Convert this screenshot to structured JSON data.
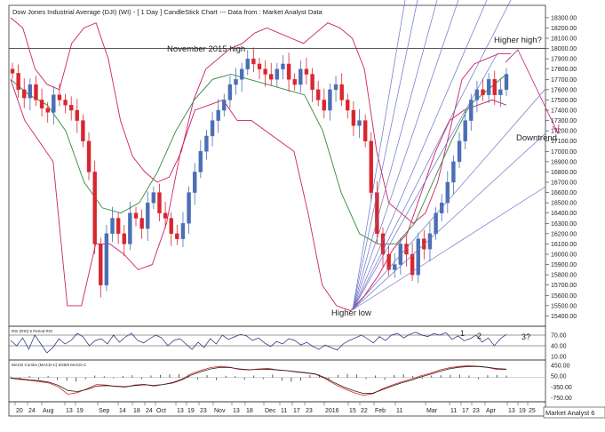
{
  "header": {
    "title": "Dow Jones Industrial Average (DJI) (WI) -  [ 1 Day ] CandleStick Chart --- Data from : Market Analyst Data"
  },
  "colors": {
    "candle_up": "#4a6fb5",
    "candle_down": "#d8262f",
    "bollinger": "#cc1f6a",
    "moving_average": "#2f8a3a",
    "fan_lines": "#6a72c8",
    "downtrend_arrow": "#c23a8a",
    "rsi_line": "#1b2a7a",
    "macd_line": "#d22",
    "signal_line": "#222",
    "text": "#222222"
  },
  "chart_data": [
    {
      "type": "candlestick",
      "title": "Dow Jones Industrial Average (DJI) (WI) -  [ 1 Day ] CandleStick Chart --- Data from : Market Analyst Data",
      "y_ticks": [
        15400,
        15500,
        15600,
        15700,
        15800,
        15900,
        16000,
        16100,
        16200,
        16300,
        16400,
        16500,
        16600,
        16700,
        16800,
        16900,
        17000,
        17100,
        17200,
        17300,
        17400,
        17500,
        17600,
        17700,
        17800,
        17900,
        18000,
        18100,
        18200,
        18300
      ],
      "y_tick_labels": [
        "15400.00",
        "15500.00",
        "15600.00",
        "15700.00",
        "15800.00",
        "15900.00",
        "16000.00",
        "16100.00",
        "16200.00",
        "16300.00",
        "16400.00",
        "16500.00",
        "16600.00",
        "16700.00",
        "16800.00",
        "16900.00",
        "17000.00",
        "17100.00",
        "17200.00",
        "17300.00",
        "17400.00",
        "17500.00",
        "17600.00",
        "17700.00",
        "17800.00",
        "17900.00",
        "18000.00",
        "18100.00",
        "18200.00",
        "18300.00"
      ],
      "ylim": [
        15300,
        18420
      ],
      "x_tick_labels": [
        "20",
        "24",
        "Aug",
        "13",
        "19",
        "Sep",
        "14",
        "18",
        "24",
        "Oct",
        "13",
        "19",
        "23",
        "Nov",
        "13",
        "18",
        "Dec",
        "11",
        "17",
        "23",
        "2016",
        "15",
        "22",
        "Feb",
        "11",
        "Mar",
        "11",
        "17",
        "23",
        "Apr",
        "13",
        "19",
        "25"
      ],
      "grid": false,
      "close_series": [
        17760,
        17600,
        17520,
        17650,
        17500,
        17420,
        17380,
        17550,
        17500,
        17450,
        17400,
        17300,
        17100,
        16800,
        16100,
        15700,
        16200,
        16350,
        16200,
        16100,
        16400,
        16350,
        16250,
        16500,
        16600,
        16400,
        16350,
        16200,
        16150,
        16300,
        16600,
        16800,
        17000,
        17150,
        17300,
        17400,
        17500,
        17650,
        17700,
        17800,
        17900,
        17850,
        17800,
        17750,
        17700,
        17800,
        17850,
        17700,
        17650,
        17800,
        17750,
        17600,
        17500,
        17400,
        17600,
        17650,
        17500,
        17400,
        17250,
        17300,
        17100,
        16600,
        16200,
        16000,
        15850,
        15900,
        16100,
        16000,
        15800,
        16150,
        16050,
        16200,
        16400,
        16500,
        16700,
        16900,
        17100,
        17300,
        17500,
        17600,
        17550,
        17700,
        17550,
        17600,
        17750
      ],
      "upper_band_levels": [
        18300,
        18200,
        17800,
        17650,
        17600,
        18050,
        18200,
        18250,
        17900,
        17300,
        16950,
        16800,
        16700,
        16750,
        17000,
        17500,
        17800,
        17900,
        18000,
        18050,
        18150,
        18200,
        18150,
        18100,
        18050,
        18150,
        18250,
        18200,
        18100,
        17800,
        17000,
        16500,
        16400,
        16300,
        16400,
        16700,
        17200,
        17700,
        17850,
        17900,
        17950,
        17950
      ],
      "lower_band_levels": [
        17700,
        17300,
        17100,
        16900,
        15500,
        15500,
        16100,
        16100,
        16000,
        15850,
        15900,
        16300,
        17000,
        17400,
        17450,
        17500,
        17300,
        17300,
        17200,
        17100,
        17000,
        16400,
        15700,
        15500,
        15450,
        15600,
        15800,
        16050,
        16200,
        16600,
        17000,
        17300,
        17400,
        17450,
        17500,
        17450
      ],
      "moving_average_levels": [
        17700,
        17550,
        17450,
        17200,
        16700,
        16450,
        16400,
        16500,
        16800,
        17200,
        17500,
        17700,
        17750,
        17700,
        17650,
        17600,
        17550,
        17200,
        16600,
        16200,
        16100,
        16100,
        16300,
        16700,
        17100,
        17450,
        17600,
        17750
      ]
    },
    {
      "type": "line",
      "title": "RSI (RSI) 5 Period RSI",
      "y_ticks": [
        10,
        40,
        70
      ],
      "y_tick_labels": [
        "10.00",
        "40.00",
        "70.00"
      ],
      "ylim": [
        0,
        95
      ],
      "reference_lines": [
        40,
        70
      ],
      "values": [
        55,
        40,
        62,
        30,
        70,
        45,
        20,
        35,
        60,
        45,
        55,
        75,
        65,
        40,
        55,
        60,
        45,
        70,
        50,
        65,
        75,
        55,
        48,
        60,
        70,
        62,
        40,
        55,
        60,
        45,
        30,
        50,
        35,
        60,
        45,
        70,
        58,
        65,
        72,
        68,
        55,
        62,
        48,
        38,
        52,
        45,
        60,
        55,
        42,
        50,
        38,
        30,
        42,
        35,
        28,
        45,
        55,
        62,
        70,
        60,
        48,
        66,
        55,
        70,
        75,
        62,
        72,
        78,
        70,
        66,
        74,
        70,
        77,
        58,
        68,
        54,
        60,
        70,
        50,
        62,
        40,
        60,
        72
      ]
    },
    {
      "type": "line",
      "title": "MACD Combo (MACD-C) 5/26/9 MACD-C",
      "y_ticks": [
        450,
        50,
        -350,
        -750
      ],
      "y_tick_labels": [
        "450.00",
        "50.00",
        "-350.00",
        "-750.00"
      ],
      "ylim": [
        -900,
        650
      ],
      "series": [
        {
          "values": [
            -30,
            -70,
            -110,
            -150,
            -200,
            -350,
            -620,
            -560,
            -420,
            -260,
            -280,
            -330,
            -360,
            -280,
            -250,
            -320,
            -260,
            -180,
            -50,
            150,
            270,
            370,
            420,
            380,
            300,
            280,
            320,
            340,
            280,
            250,
            200,
            170,
            120,
            -40,
            -250,
            -420,
            -560,
            -660,
            -600,
            -420,
            -280,
            -160,
            -60,
            60,
            160,
            280,
            360,
            410,
            440,
            420,
            380,
            300,
            300
          ]
        },
        {
          "values": [
            -20,
            -50,
            -90,
            -120,
            -170,
            -290,
            -480,
            -520,
            -440,
            -320,
            -300,
            -320,
            -340,
            -300,
            -270,
            -290,
            -260,
            -200,
            -80,
            100,
            220,
            320,
            380,
            370,
            320,
            290,
            300,
            310,
            280,
            255,
            215,
            180,
            130,
            -10,
            -200,
            -360,
            -490,
            -590,
            -580,
            -450,
            -320,
            -200,
            -100,
            20,
            120,
            230,
            320,
            380,
            410,
            410,
            380,
            330,
            310
          ]
        }
      ],
      "histogram": [
        6,
        -8,
        10,
        -12,
        9,
        -15,
        -20,
        -25,
        -10,
        12,
        8,
        -6,
        10,
        14,
        -9,
        12,
        16,
        20,
        22,
        18,
        -12,
        14,
        -16,
        10,
        8,
        -14,
        12,
        -10,
        18,
        -20,
        -26,
        -20,
        14,
        18,
        -12,
        16,
        22,
        18,
        -10,
        12,
        -14,
        16,
        20,
        10,
        -8,
        12,
        14,
        16,
        18,
        12,
        -10,
        14,
        16,
        12
      ]
    }
  ],
  "annotations": {
    "november_high": "November 2015 high",
    "higher_high": "Higher high?",
    "downtrend": "Downtrend",
    "higher_low": "Higher low",
    "rsi_mark_1": "1",
    "rsi_mark_2": "2",
    "rsi_mark_3": "3?"
  },
  "footer": {
    "brand": "Market Analyst 6"
  },
  "panels": {
    "rsi_label": "RSI (RSI) 5 Period RSI",
    "macd_label": "MACD Combo (MACD-C) 5/26/9 MACD-C"
  }
}
